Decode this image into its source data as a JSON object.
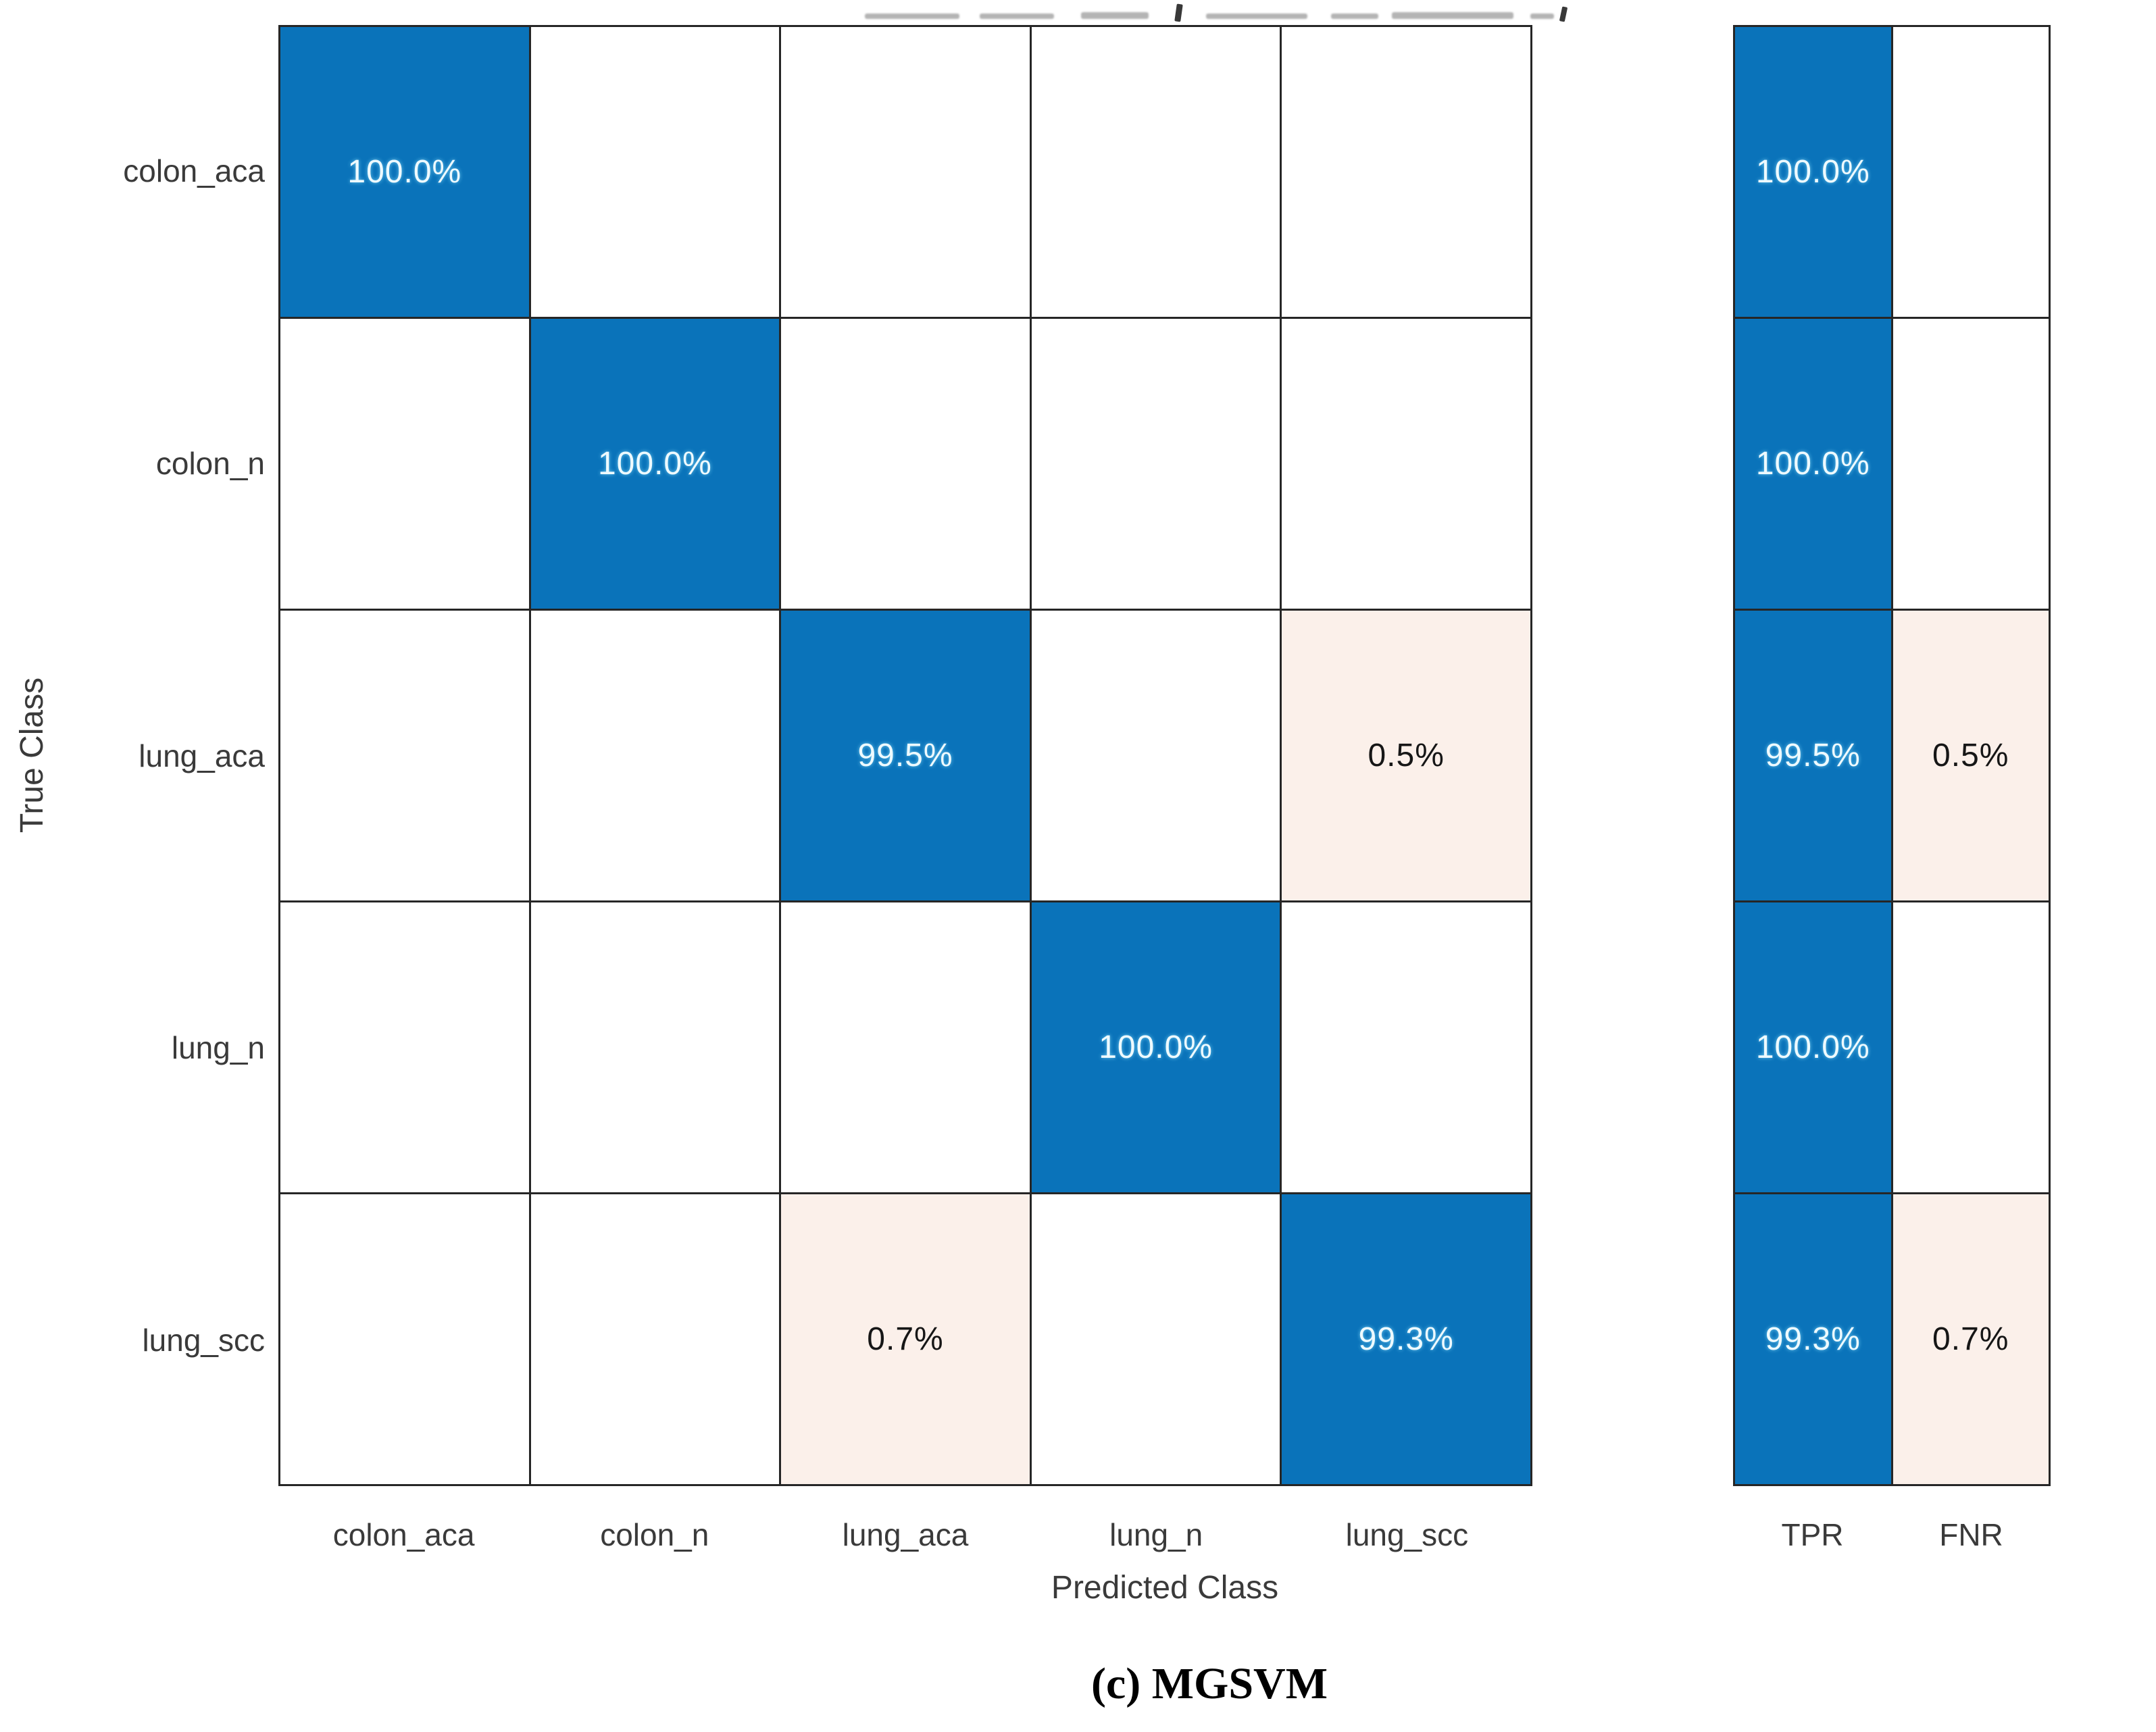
{
  "chart_data": {
    "type": "heatmap",
    "subtype": "confusion-matrix",
    "classes": [
      "colon_aca",
      "colon_n",
      "lung_aca",
      "lung_n",
      "lung_scc"
    ],
    "xlabel": "Predicted Class",
    "ylabel": "True Class",
    "caption": "(c) MGSVM",
    "matrix_percent": [
      [
        100.0,
        0,
        0,
        0,
        0
      ],
      [
        0,
        100.0,
        0,
        0,
        0
      ],
      [
        0,
        0,
        99.5,
        0,
        0.5
      ],
      [
        0,
        0,
        0,
        100.0,
        0
      ],
      [
        0,
        0,
        0.7,
        0,
        99.3
      ]
    ],
    "matrix_display": [
      [
        "100.0%",
        "",
        "",
        "",
        ""
      ],
      [
        "",
        "100.0%",
        "",
        "",
        ""
      ],
      [
        "",
        "",
        "99.5%",
        "",
        "0.5%"
      ],
      [
        "",
        "",
        "",
        "100.0%",
        ""
      ],
      [
        "",
        "",
        "0.7%",
        "",
        "99.3%"
      ]
    ],
    "row_summary": {
      "column_labels": [
        "TPR",
        "FNR"
      ],
      "tpr_percent": [
        100.0,
        100.0,
        99.5,
        100.0,
        99.3
      ],
      "fnr_percent": [
        0,
        0,
        0.5,
        0,
        0.7
      ],
      "tpr_display": [
        "100.0%",
        "100.0%",
        "99.5%",
        "100.0%",
        "99.3%"
      ],
      "fnr_display": [
        "",
        "",
        "0.5%",
        "",
        "0.7%"
      ]
    },
    "colors": {
      "diagonal_blue": "#0a73ba",
      "offdiagonal_pink": "#fbf0ea",
      "empty_cell": "#ffffff",
      "grid_line": "#262626",
      "text_on_blue": "#eefaff",
      "text_dark": "#161616",
      "axis_text": "#3a3a3a"
    },
    "grid": true,
    "legend_position": "none"
  }
}
